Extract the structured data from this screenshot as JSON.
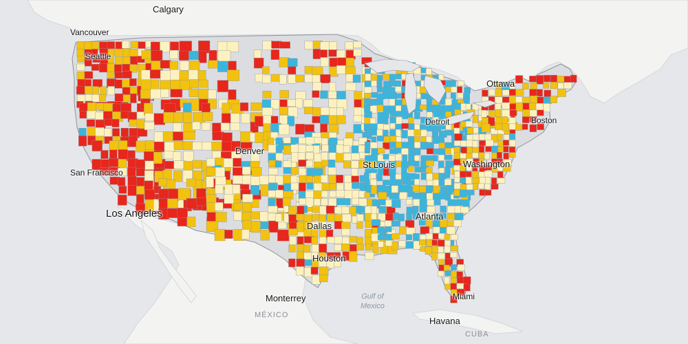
{
  "labels": {
    "calgary": "Calgary",
    "vancouver": "Vancouver",
    "seattle": "Seattle",
    "ottawa": "Ottawa",
    "detroit": "Detroit",
    "boston": "Boston",
    "denver": "Denver",
    "st_louis": "St Louis",
    "washington": "Washington",
    "san_francisco": "San Francisco",
    "los_angeles": "Los Angeles",
    "dallas": "Dallas",
    "atlanta": "Atlanta",
    "houston": "Houston",
    "monterrey": "Monterrey",
    "miami": "Miami",
    "gulf_line1": "Gulf of",
    "gulf_line2": "Mexico",
    "mexico": "MÉXICO",
    "havana": "Havana",
    "cuba": "CUBA"
  },
  "colors": {
    "background": "#e6e7ea",
    "land": "#f3f3f1",
    "us_base": "#dcdde0",
    "county_outline": "#8e9298",
    "category_red": "#e8261c",
    "category_yellow": "#f2c20e",
    "category_cream": "#fdf2bf",
    "category_blue": "#3bb5dc"
  }
}
